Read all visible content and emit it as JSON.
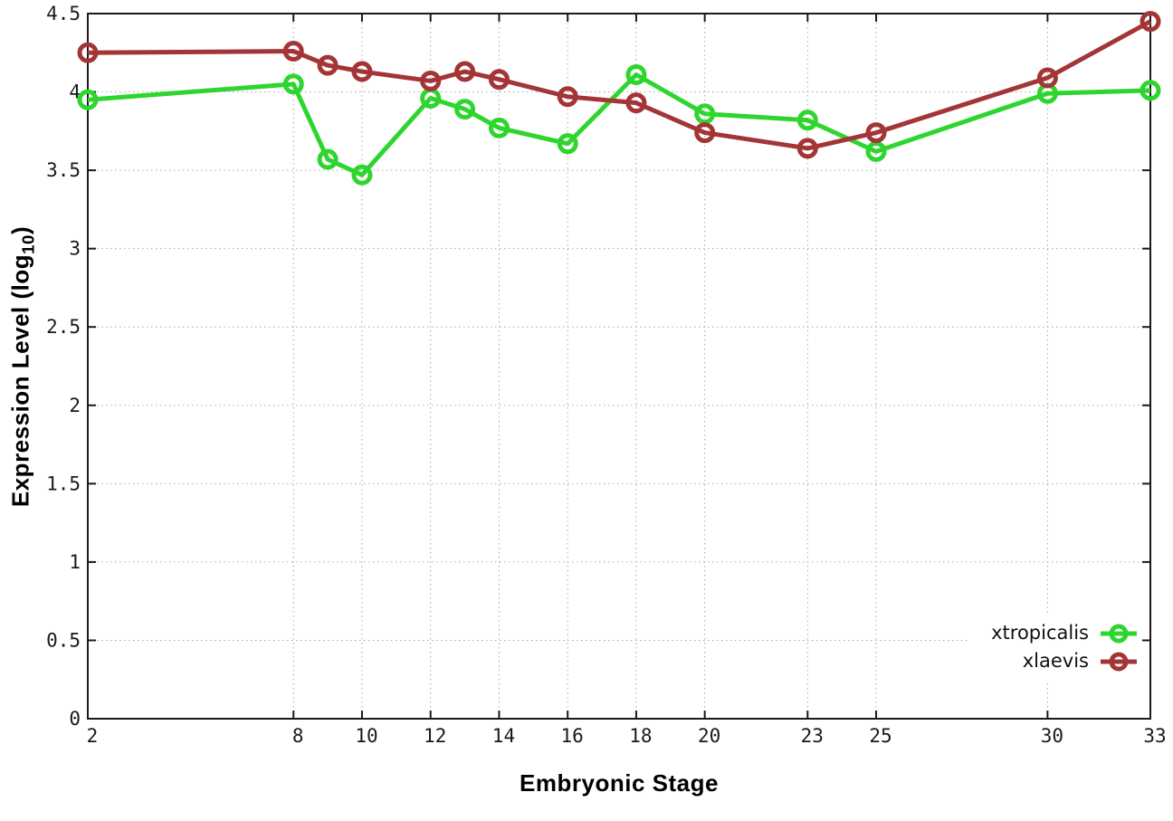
{
  "chart_data": {
    "type": "line",
    "title": "",
    "xlabel": "Embryonic Stage",
    "ylabel": "Expression Level (log10)",
    "ylabel_rich": {
      "main": "Expression Level (log",
      "sub": "10",
      "close": ")"
    },
    "x": [
      2,
      8,
      9,
      10,
      12,
      13,
      14,
      16,
      18,
      20,
      23,
      25,
      30,
      33
    ],
    "series": [
      {
        "name": "xtropicalis",
        "color": "#2ed52e",
        "values": [
          3.95,
          4.05,
          3.57,
          3.47,
          3.96,
          3.89,
          3.77,
          3.67,
          4.11,
          3.86,
          3.82,
          3.62,
          3.99,
          4.01
        ]
      },
      {
        "name": "xlaevis",
        "color": "#a33536",
        "values": [
          4.25,
          4.26,
          4.17,
          4.13,
          4.07,
          4.13,
          4.08,
          3.97,
          3.93,
          3.74,
          3.64,
          3.74,
          4.09,
          4.45
        ]
      }
    ],
    "xlim": [
      2,
      33
    ],
    "ylim": [
      0,
      4.5
    ],
    "xticks": [
      2,
      8,
      10,
      12,
      14,
      16,
      18,
      20,
      23,
      25,
      30,
      33
    ],
    "yticks": [
      "0",
      "0.5",
      "1",
      "1.5",
      "2",
      "2.5",
      "3",
      "3.5",
      "4",
      "4.5"
    ],
    "grid": true,
    "legend_position": "inside-bottom-right",
    "marker": "open-circle"
  },
  "colors": {
    "background": "#ffffff",
    "frame": "#1a1a1a",
    "grid": "#a9a9a9",
    "text": "#000000"
  }
}
